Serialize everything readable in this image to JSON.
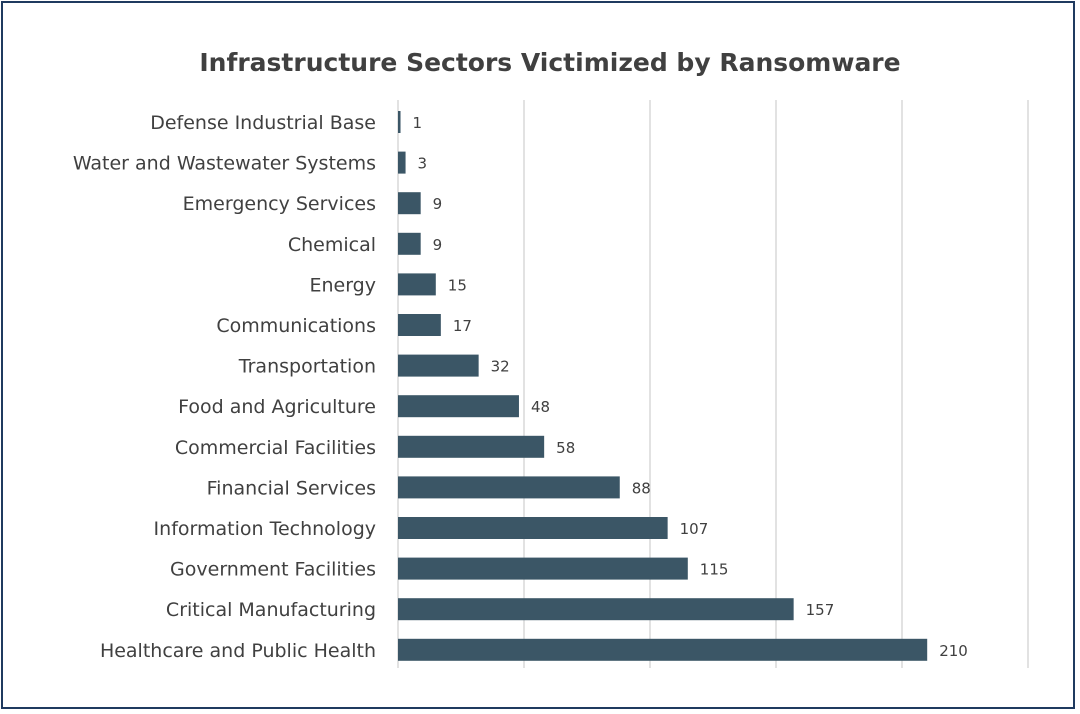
{
  "chart_data": {
    "type": "bar",
    "orientation": "horizontal",
    "title": "Infrastructure Sectors Victimized by Ransomware",
    "xlabel": "",
    "ylabel": "",
    "categories": [
      "Defense Industrial Base",
      "Water and Wastewater Systems",
      "Emergency Services",
      "Chemical",
      "Energy",
      "Communications",
      "Transportation",
      "Food and Agriculture",
      "Commercial Facilities",
      "Financial Services",
      "Information Technology",
      "Government Facilities",
      "Critical Manufacturing",
      "Healthcare and Public Health"
    ],
    "values": [
      1,
      3,
      9,
      9,
      15,
      17,
      32,
      48,
      58,
      88,
      107,
      115,
      157,
      210
    ],
    "xlim": [
      0,
      250
    ],
    "grid": true,
    "data_labels": true,
    "legend": "none",
    "bar_color": "#3b5666",
    "grid_color": "#d9d9d9",
    "border_color": "#1f3a5f"
  }
}
